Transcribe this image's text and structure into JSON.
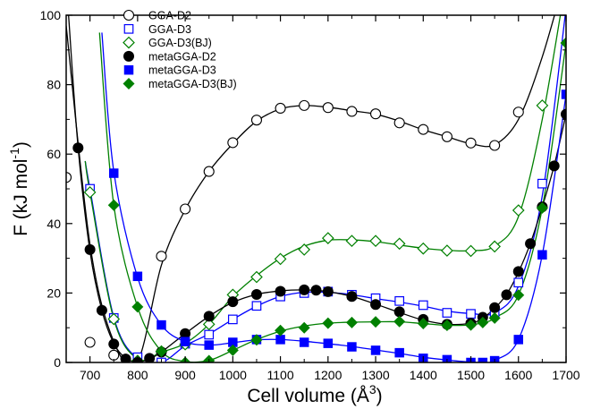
{
  "chart_data": {
    "type": "scatter",
    "xlabel": "Cell volume (Å",
    "xlabel_sup": "3",
    "xlabel_close": ")",
    "ylabel": "F (kJ mol",
    "ylabel_sup": "-1",
    "ylabel_close": ")",
    "xlim": [
      650,
      1700
    ],
    "ylim": [
      0,
      100
    ],
    "xticks": [
      700,
      800,
      900,
      1000,
      1100,
      1200,
      1300,
      1400,
      1500,
      1600,
      1700
    ],
    "yticks": [
      0,
      20,
      40,
      60,
      80,
      100
    ],
    "legend_position": "top-left",
    "series": [
      {
        "name": "GGA-D2",
        "color": "#000000",
        "marker": "circle-open",
        "points": [
          [
            650,
            53.3
          ],
          [
            700,
            5.8
          ],
          [
            750,
            2.1
          ],
          [
            800,
            0
          ],
          [
            850,
            30.6
          ],
          [
            900,
            44.2
          ],
          [
            950,
            55
          ],
          [
            1000,
            63.3
          ],
          [
            1050,
            69.8
          ],
          [
            1100,
            73.2
          ],
          [
            1150,
            74
          ],
          [
            1200,
            73.4
          ],
          [
            1250,
            72.3
          ],
          [
            1300,
            71.6
          ],
          [
            1350,
            69
          ],
          [
            1400,
            67.1
          ],
          [
            1450,
            65
          ],
          [
            1500,
            63.2
          ],
          [
            1550,
            62.5
          ],
          [
            1600,
            72.1
          ]
        ],
        "curve": [
          [
            650,
            97
          ],
          [
            700,
            34
          ],
          [
            750,
            6
          ],
          [
            800,
            0.3
          ],
          [
            850,
            28
          ],
          [
            900,
            44
          ],
          [
            950,
            55
          ],
          [
            1000,
            63
          ],
          [
            1050,
            69.5
          ],
          [
            1100,
            73
          ],
          [
            1150,
            74
          ],
          [
            1200,
            73.5
          ],
          [
            1250,
            72.5
          ],
          [
            1300,
            71.5
          ],
          [
            1350,
            69.5
          ],
          [
            1400,
            67
          ],
          [
            1450,
            65
          ],
          [
            1500,
            63
          ],
          [
            1550,
            62.7
          ],
          [
            1600,
            70
          ],
          [
            1650,
            88
          ],
          [
            1700,
            112
          ]
        ]
      },
      {
        "name": "GGA-D3",
        "color": "#0000ff",
        "marker": "square-open",
        "points": [
          [
            700,
            50
          ],
          [
            750,
            12.8
          ],
          [
            800,
            1.5
          ],
          [
            850,
            0
          ],
          [
            900,
            5.4
          ],
          [
            950,
            8
          ],
          [
            1000,
            12.4
          ],
          [
            1050,
            16.3
          ],
          [
            1100,
            19
          ],
          [
            1150,
            20
          ],
          [
            1200,
            20.4
          ],
          [
            1250,
            19.5
          ],
          [
            1300,
            18.5
          ],
          [
            1350,
            17.7
          ],
          [
            1400,
            16.5
          ],
          [
            1450,
            14.3
          ],
          [
            1500,
            14
          ],
          [
            1550,
            14.2
          ],
          [
            1600,
            23
          ],
          [
            1650,
            51.5
          ]
        ],
        "curve": [
          [
            690,
            58
          ],
          [
            700,
            50
          ],
          [
            750,
            13
          ],
          [
            800,
            1
          ],
          [
            850,
            0
          ],
          [
            900,
            4.8
          ],
          [
            950,
            8.2
          ],
          [
            1000,
            12.4
          ],
          [
            1050,
            16.2
          ],
          [
            1100,
            19
          ],
          [
            1150,
            20.2
          ],
          [
            1200,
            20.2
          ],
          [
            1250,
            19.5
          ],
          [
            1300,
            18.4
          ],
          [
            1350,
            17.4
          ],
          [
            1400,
            16.2
          ],
          [
            1450,
            14.8
          ],
          [
            1500,
            14.1
          ],
          [
            1550,
            14.3
          ],
          [
            1600,
            22
          ],
          [
            1650,
            48
          ],
          [
            1700,
            102
          ]
        ]
      },
      {
        "name": "GGA-D3(BJ)",
        "color": "#008000",
        "marker": "diamond-open",
        "points": [
          [
            700,
            49
          ],
          [
            750,
            12.5
          ],
          [
            800,
            0.5
          ],
          [
            850,
            3.2
          ],
          [
            900,
            5.2
          ],
          [
            950,
            11
          ],
          [
            1000,
            19.5
          ],
          [
            1050,
            24.6
          ],
          [
            1100,
            29.8
          ],
          [
            1150,
            32.5
          ],
          [
            1200,
            35.8
          ],
          [
            1250,
            35
          ],
          [
            1300,
            35
          ],
          [
            1350,
            34.2
          ],
          [
            1400,
            32.8
          ],
          [
            1450,
            32.2
          ],
          [
            1500,
            32.1
          ],
          [
            1550,
            33.4
          ],
          [
            1600,
            43.8
          ],
          [
            1650,
            74
          ]
        ],
        "curve": [
          [
            690,
            58
          ],
          [
            700,
            49
          ],
          [
            750,
            12.5
          ],
          [
            800,
            1
          ],
          [
            850,
            3
          ],
          [
            900,
            5.5
          ],
          [
            950,
            11
          ],
          [
            1000,
            19
          ],
          [
            1050,
            25
          ],
          [
            1100,
            30
          ],
          [
            1150,
            33.5
          ],
          [
            1200,
            35.2
          ],
          [
            1250,
            35.3
          ],
          [
            1300,
            34.8
          ],
          [
            1350,
            33.8
          ],
          [
            1400,
            32.9
          ],
          [
            1450,
            32.3
          ],
          [
            1500,
            32.2
          ],
          [
            1550,
            33.5
          ],
          [
            1600,
            42
          ],
          [
            1650,
            70
          ],
          [
            1700,
            110
          ]
        ]
      },
      {
        "name": "metaGGA-D2",
        "color": "#000000",
        "marker": "circle-filled",
        "points": [
          [
            675,
            61.8
          ],
          [
            700,
            32.5
          ],
          [
            725,
            15
          ],
          [
            750,
            5.3
          ],
          [
            775,
            1
          ],
          [
            800,
            0
          ],
          [
            825,
            1.2
          ],
          [
            850,
            3
          ],
          [
            900,
            8.3
          ],
          [
            950,
            13.3
          ],
          [
            1000,
            17.5
          ],
          [
            1050,
            19.6
          ],
          [
            1100,
            20.5
          ],
          [
            1150,
            20.9
          ],
          [
            1175,
            20.8
          ],
          [
            1200,
            20.4
          ],
          [
            1250,
            19
          ],
          [
            1300,
            16.7
          ],
          [
            1350,
            14.6
          ],
          [
            1400,
            12.4
          ],
          [
            1450,
            11
          ],
          [
            1500,
            11.3
          ],
          [
            1525,
            13
          ],
          [
            1550,
            15.8
          ],
          [
            1575,
            19.5
          ],
          [
            1600,
            26.2
          ],
          [
            1625,
            34.2
          ],
          [
            1650,
            44.8
          ],
          [
            1675,
            56.6
          ],
          [
            1700,
            71.5
          ]
        ],
        "curve": [
          [
            655,
            100
          ],
          [
            675,
            62
          ],
          [
            700,
            32
          ],
          [
            725,
            15
          ],
          [
            750,
            5.5
          ],
          [
            775,
            1.2
          ],
          [
            800,
            0.2
          ],
          [
            825,
            1
          ],
          [
            850,
            3
          ],
          [
            900,
            8.3
          ],
          [
            950,
            13.3
          ],
          [
            1000,
            17.3
          ],
          [
            1050,
            19.6
          ],
          [
            1100,
            20.6
          ],
          [
            1150,
            20.9
          ],
          [
            1200,
            20.4
          ],
          [
            1250,
            19
          ],
          [
            1300,
            16.8
          ],
          [
            1350,
            14.4
          ],
          [
            1400,
            12.2
          ],
          [
            1450,
            11
          ],
          [
            1500,
            11.3
          ],
          [
            1525,
            12.8
          ],
          [
            1550,
            15.6
          ],
          [
            1575,
            19.6
          ],
          [
            1600,
            26
          ],
          [
            1625,
            34.3
          ],
          [
            1650,
            44.8
          ],
          [
            1675,
            56.7
          ],
          [
            1700,
            71.5
          ]
        ]
      },
      {
        "name": "metaGGA-D3",
        "color": "#0000ff",
        "marker": "square-filled",
        "points": [
          [
            750,
            54.5
          ],
          [
            800,
            24.8
          ],
          [
            850,
            10.8
          ],
          [
            900,
            6
          ],
          [
            950,
            5
          ],
          [
            1000,
            5.8
          ],
          [
            1050,
            6.6
          ],
          [
            1100,
            6.6
          ],
          [
            1150,
            5.8
          ],
          [
            1200,
            5.5
          ],
          [
            1250,
            4.5
          ],
          [
            1300,
            3.5
          ],
          [
            1350,
            2.8
          ],
          [
            1400,
            1.2
          ],
          [
            1450,
            0.8
          ],
          [
            1500,
            0
          ],
          [
            1525,
            0
          ],
          [
            1550,
            0.5
          ],
          [
            1600,
            6.6
          ],
          [
            1650,
            31
          ],
          [
            1700,
            77.2
          ]
        ],
        "curve": [
          [
            725,
            95
          ],
          [
            750,
            55
          ],
          [
            800,
            24.5
          ],
          [
            850,
            10.8
          ],
          [
            900,
            6
          ],
          [
            950,
            5
          ],
          [
            1000,
            5.7
          ],
          [
            1050,
            6.5
          ],
          [
            1100,
            6.6
          ],
          [
            1150,
            6.1
          ],
          [
            1200,
            5.4
          ],
          [
            1250,
            4.6
          ],
          [
            1300,
            3.6
          ],
          [
            1350,
            2.6
          ],
          [
            1400,
            1.5
          ],
          [
            1450,
            0.7
          ],
          [
            1500,
            0.1
          ],
          [
            1525,
            0
          ],
          [
            1550,
            0.6
          ],
          [
            1600,
            6.6
          ],
          [
            1650,
            31
          ],
          [
            1700,
            77.2
          ]
        ]
      },
      {
        "name": "metaGGA-D3(BJ)",
        "color": "#008000",
        "marker": "diamond-filled",
        "points": [
          [
            750,
            45.3
          ],
          [
            800,
            16
          ],
          [
            850,
            3.2
          ],
          [
            900,
            0
          ],
          [
            950,
            0.5
          ],
          [
            1000,
            3.5
          ],
          [
            1050,
            6.5
          ],
          [
            1100,
            9.2
          ],
          [
            1150,
            10
          ],
          [
            1200,
            11.3
          ],
          [
            1250,
            11.5
          ],
          [
            1300,
            11.7
          ],
          [
            1350,
            11.8
          ],
          [
            1400,
            11.2
          ],
          [
            1450,
            10.7
          ],
          [
            1500,
            10.8
          ],
          [
            1525,
            11.5
          ],
          [
            1550,
            12.8
          ],
          [
            1600,
            19.4
          ],
          [
            1650,
            44.5
          ],
          [
            1700,
            92
          ]
        ],
        "curve": [
          [
            720,
            95
          ],
          [
            750,
            45.3
          ],
          [
            800,
            16
          ],
          [
            850,
            3.2
          ],
          [
            900,
            0.3
          ],
          [
            950,
            0.6
          ],
          [
            1000,
            3.5
          ],
          [
            1050,
            6.6
          ],
          [
            1100,
            9
          ],
          [
            1150,
            10.5
          ],
          [
            1200,
            11.3
          ],
          [
            1250,
            11.6
          ],
          [
            1300,
            11.7
          ],
          [
            1350,
            11.7
          ],
          [
            1400,
            11.2
          ],
          [
            1450,
            10.7
          ],
          [
            1500,
            10.8
          ],
          [
            1525,
            11.5
          ],
          [
            1550,
            12.8
          ],
          [
            1600,
            19.4
          ],
          [
            1650,
            44.5
          ],
          [
            1700,
            92
          ]
        ]
      }
    ]
  }
}
